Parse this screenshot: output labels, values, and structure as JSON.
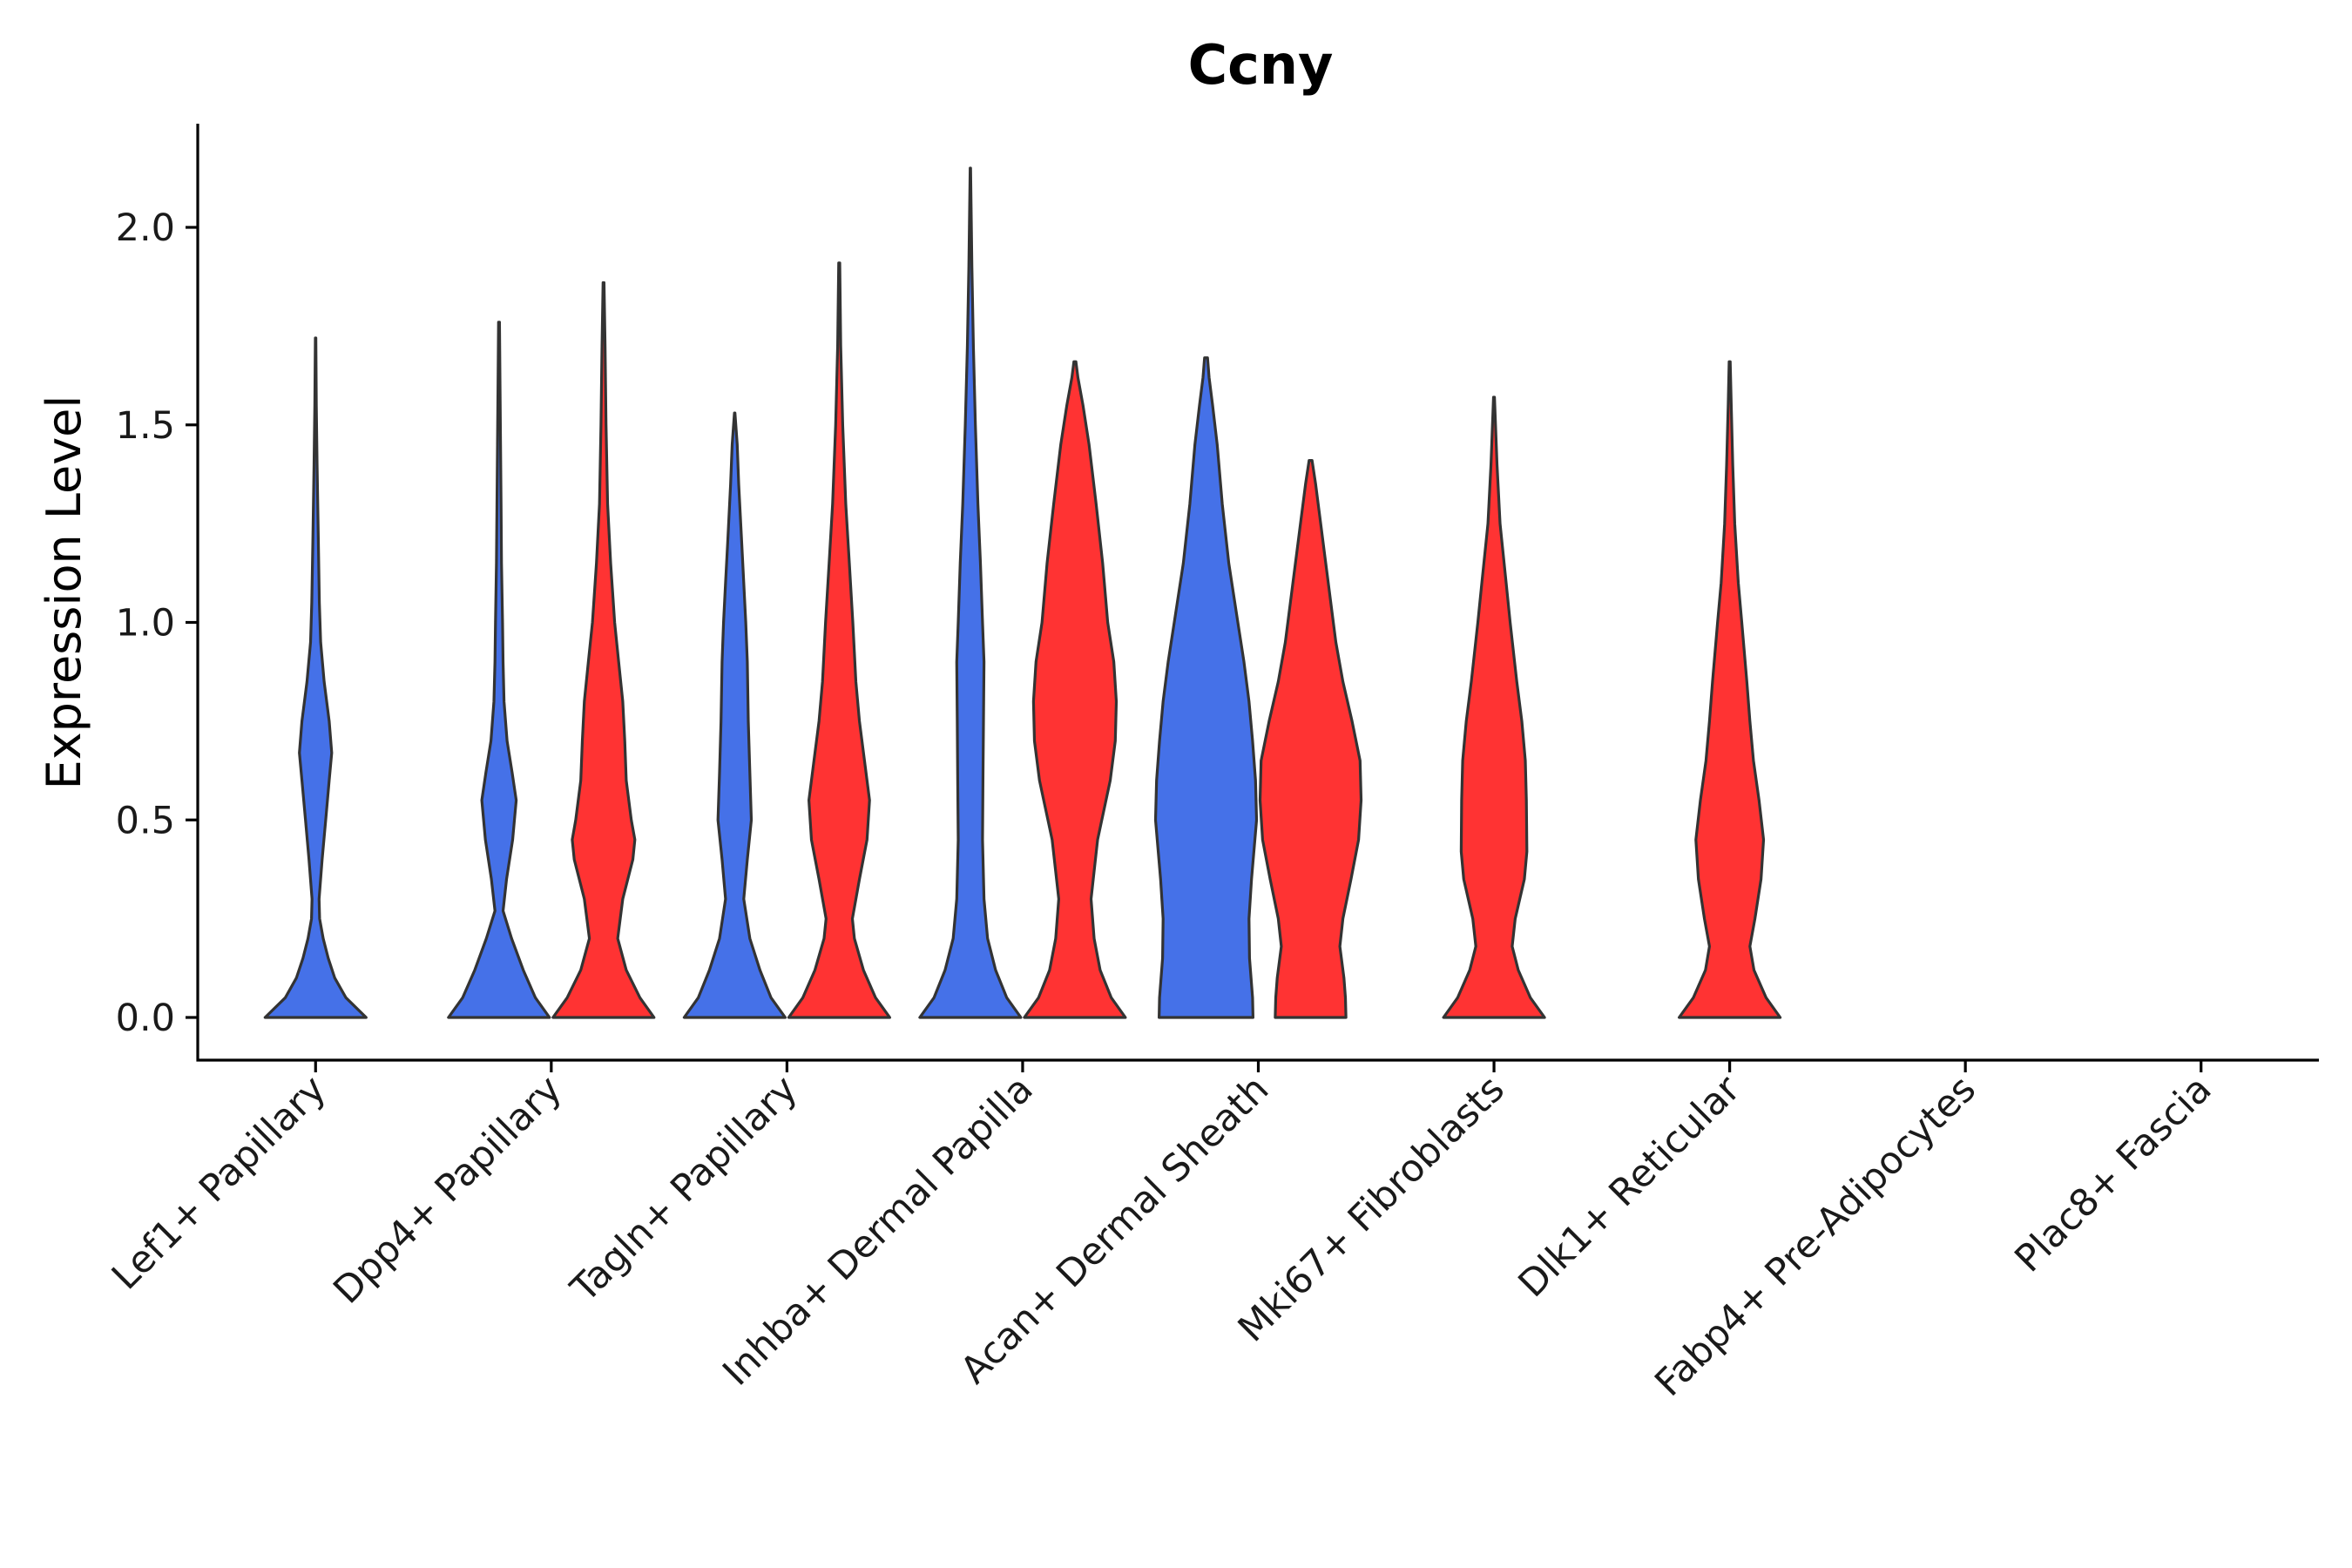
{
  "chart_data": {
    "type": "violin",
    "title": "Ccny",
    "xlabel": "",
    "ylabel": "Expression Level",
    "ylim": [
      -0.11,
      2.27
    ],
    "yticks": [
      0.0,
      0.5,
      1.0,
      1.5,
      2.0
    ],
    "ytick_labels": [
      "0.0",
      "0.5",
      "1.0",
      "1.5",
      "2.0"
    ],
    "grid": false,
    "legend": "none",
    "colors": {
      "blue": "#4571e8",
      "red": "#ff3333",
      "outline": "#333333"
    },
    "categories": [
      "Lef1+ Papillary",
      "Dpp4+ Papillary",
      "Tagln+ Papillary",
      "Inhba+ Dermal Papilla",
      "Acan+ Dermal Sheath",
      "Mki67+ Fibroblasts",
      "Dlk1+ Reticular",
      "Fabp4+ Pre-Adipocytes",
      "Plac8+ Fascia"
    ],
    "series": [
      {
        "name": "blue",
        "color": "#4571e8",
        "violins": [
          {
            "category": "Lef1+ Papillary",
            "max": 1.72,
            "profile": [
              [
                0.0,
                1.0
              ],
              [
                0.05,
                0.6
              ],
              [
                0.1,
                0.38
              ],
              [
                0.15,
                0.25
              ],
              [
                0.2,
                0.15
              ],
              [
                0.25,
                0.08
              ],
              [
                0.3,
                0.07
              ],
              [
                0.4,
                0.13
              ],
              [
                0.5,
                0.2
              ],
              [
                0.6,
                0.27
              ],
              [
                0.67,
                0.32
              ],
              [
                0.75,
                0.27
              ],
              [
                0.85,
                0.17
              ],
              [
                0.95,
                0.1
              ],
              [
                1.05,
                0.075
              ],
              [
                1.2,
                0.055
              ],
              [
                1.4,
                0.03
              ],
              [
                1.55,
                0.015
              ],
              [
                1.72,
                0.005
              ]
            ]
          },
          {
            "category": "Dpp4+ Papillary",
            "max": 1.76,
            "profile": [
              [
                0.0,
                1.0
              ],
              [
                0.05,
                0.72
              ],
              [
                0.12,
                0.48
              ],
              [
                0.2,
                0.25
              ],
              [
                0.27,
                0.08
              ],
              [
                0.35,
                0.15
              ],
              [
                0.45,
                0.27
              ],
              [
                0.55,
                0.34
              ],
              [
                0.62,
                0.26
              ],
              [
                0.7,
                0.16
              ],
              [
                0.8,
                0.1
              ],
              [
                0.9,
                0.08
              ],
              [
                1.0,
                0.07
              ],
              [
                1.15,
                0.05
              ],
              [
                1.3,
                0.04
              ],
              [
                1.45,
                0.03
              ],
              [
                1.6,
                0.02
              ],
              [
                1.76,
                0.01
              ]
            ]
          },
          {
            "category": "Tagln+ Papillary",
            "max": 1.53,
            "profile": [
              [
                0.0,
                1.0
              ],
              [
                0.05,
                0.72
              ],
              [
                0.12,
                0.5
              ],
              [
                0.2,
                0.3
              ],
              [
                0.3,
                0.18
              ],
              [
                0.4,
                0.25
              ],
              [
                0.5,
                0.33
              ],
              [
                0.62,
                0.3
              ],
              [
                0.75,
                0.27
              ],
              [
                0.9,
                0.25
              ],
              [
                1.0,
                0.22
              ],
              [
                1.1,
                0.18
              ],
              [
                1.2,
                0.14
              ],
              [
                1.35,
                0.08
              ],
              [
                1.45,
                0.05
              ],
              [
                1.53,
                0.005
              ]
            ]
          },
          {
            "category": "Inhba+ Dermal Papilla",
            "max": 2.15,
            "profile": [
              [
                0.0,
                1.0
              ],
              [
                0.05,
                0.72
              ],
              [
                0.12,
                0.5
              ],
              [
                0.2,
                0.34
              ],
              [
                0.3,
                0.27
              ],
              [
                0.45,
                0.24
              ],
              [
                0.6,
                0.25
              ],
              [
                0.75,
                0.26
              ],
              [
                0.9,
                0.27
              ],
              [
                1.0,
                0.24
              ],
              [
                1.15,
                0.2
              ],
              [
                1.3,
                0.15
              ],
              [
                1.5,
                0.1
              ],
              [
                1.7,
                0.06
              ],
              [
                1.9,
                0.03
              ],
              [
                2.05,
                0.015
              ],
              [
                2.15,
                0.005
              ]
            ]
          },
          {
            "category": "Acan+ Dermal Sheath",
            "max": 1.67,
            "profile": [
              [
                0.0,
                0.93
              ],
              [
                0.05,
                0.92
              ],
              [
                0.15,
                0.86
              ],
              [
                0.25,
                0.85
              ],
              [
                0.35,
                0.9
              ],
              [
                0.5,
                1.0
              ],
              [
                0.6,
                0.98
              ],
              [
                0.7,
                0.92
              ],
              [
                0.8,
                0.85
              ],
              [
                0.9,
                0.75
              ],
              [
                1.0,
                0.63
              ],
              [
                1.15,
                0.45
              ],
              [
                1.3,
                0.32
              ],
              [
                1.45,
                0.22
              ],
              [
                1.55,
                0.13
              ],
              [
                1.62,
                0.06
              ],
              [
                1.67,
                0.03
              ]
            ]
          }
        ]
      },
      {
        "name": "red",
        "color": "#ff3333",
        "violins": [
          {
            "category": "Dpp4+ Papillary",
            "max": 1.86,
            "profile": [
              [
                0.0,
                1.0
              ],
              [
                0.05,
                0.72
              ],
              [
                0.12,
                0.45
              ],
              [
                0.2,
                0.28
              ],
              [
                0.3,
                0.38
              ],
              [
                0.4,
                0.58
              ],
              [
                0.45,
                0.62
              ],
              [
                0.5,
                0.55
              ],
              [
                0.6,
                0.45
              ],
              [
                0.7,
                0.42
              ],
              [
                0.8,
                0.38
              ],
              [
                0.9,
                0.3
              ],
              [
                1.0,
                0.22
              ],
              [
                1.15,
                0.14
              ],
              [
                1.3,
                0.08
              ],
              [
                1.5,
                0.05
              ],
              [
                1.7,
                0.03
              ],
              [
                1.86,
                0.01
              ]
            ]
          },
          {
            "category": "Tagln+ Papillary",
            "max": 1.91,
            "profile": [
              [
                0.0,
                1.0
              ],
              [
                0.05,
                0.72
              ],
              [
                0.12,
                0.48
              ],
              [
                0.2,
                0.3
              ],
              [
                0.25,
                0.26
              ],
              [
                0.35,
                0.4
              ],
              [
                0.45,
                0.55
              ],
              [
                0.55,
                0.6
              ],
              [
                0.65,
                0.5
              ],
              [
                0.75,
                0.4
              ],
              [
                0.85,
                0.33
              ],
              [
                1.0,
                0.27
              ],
              [
                1.15,
                0.2
              ],
              [
                1.3,
                0.13
              ],
              [
                1.5,
                0.07
              ],
              [
                1.7,
                0.03
              ],
              [
                1.91,
                0.01
              ]
            ]
          },
          {
            "category": "Inhba+ Dermal Papilla",
            "max": 1.66,
            "profile": [
              [
                0.0,
                1.0
              ],
              [
                0.05,
                0.72
              ],
              [
                0.12,
                0.5
              ],
              [
                0.2,
                0.38
              ],
              [
                0.3,
                0.32
              ],
              [
                0.45,
                0.45
              ],
              [
                0.6,
                0.7
              ],
              [
                0.7,
                0.8
              ],
              [
                0.8,
                0.82
              ],
              [
                0.9,
                0.77
              ],
              [
                1.0,
                0.65
              ],
              [
                1.15,
                0.55
              ],
              [
                1.3,
                0.42
              ],
              [
                1.45,
                0.28
              ],
              [
                1.55,
                0.16
              ],
              [
                1.62,
                0.06
              ],
              [
                1.66,
                0.02
              ]
            ]
          },
          {
            "category": "Acan+ Dermal Sheath",
            "max": 1.41,
            "profile": [
              [
                0.0,
                0.7
              ],
              [
                0.05,
                0.69
              ],
              [
                0.1,
                0.66
              ],
              [
                0.18,
                0.58
              ],
              [
                0.25,
                0.64
              ],
              [
                0.35,
                0.8
              ],
              [
                0.45,
                0.95
              ],
              [
                0.55,
                1.0
              ],
              [
                0.65,
                0.98
              ],
              [
                0.75,
                0.82
              ],
              [
                0.85,
                0.64
              ],
              [
                0.95,
                0.5
              ],
              [
                1.05,
                0.4
              ],
              [
                1.15,
                0.3
              ],
              [
                1.25,
                0.2
              ],
              [
                1.35,
                0.1
              ],
              [
                1.41,
                0.03
              ]
            ]
          },
          {
            "category": "Mki67+ Fibroblasts",
            "max": 1.57,
            "profile": [
              [
                0.0,
                1.0
              ],
              [
                0.05,
                0.72
              ],
              [
                0.12,
                0.48
              ],
              [
                0.18,
                0.36
              ],
              [
                0.25,
                0.42
              ],
              [
                0.35,
                0.6
              ],
              [
                0.42,
                0.65
              ],
              [
                0.55,
                0.64
              ],
              [
                0.65,
                0.62
              ],
              [
                0.75,
                0.55
              ],
              [
                0.85,
                0.45
              ],
              [
                1.0,
                0.32
              ],
              [
                1.1,
                0.24
              ],
              [
                1.25,
                0.12
              ],
              [
                1.4,
                0.06
              ],
              [
                1.57,
                0.01
              ]
            ]
          },
          {
            "category": "Dlk1+ Reticular",
            "max": 1.66,
            "profile": [
              [
                0.0,
                1.0
              ],
              [
                0.05,
                0.72
              ],
              [
                0.12,
                0.48
              ],
              [
                0.18,
                0.4
              ],
              [
                0.25,
                0.5
              ],
              [
                0.35,
                0.62
              ],
              [
                0.45,
                0.67
              ],
              [
                0.55,
                0.58
              ],
              [
                0.65,
                0.47
              ],
              [
                0.75,
                0.4
              ],
              [
                0.85,
                0.34
              ],
              [
                1.0,
                0.24
              ],
              [
                1.1,
                0.17
              ],
              [
                1.25,
                0.1
              ],
              [
                1.4,
                0.06
              ],
              [
                1.55,
                0.03
              ],
              [
                1.66,
                0.01
              ]
            ]
          }
        ]
      }
    ]
  }
}
